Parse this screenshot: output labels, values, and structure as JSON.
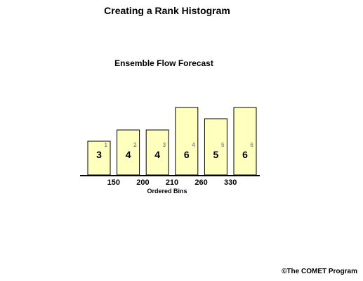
{
  "title": "Creating a Rank Histogram",
  "chart_data": {
    "type": "bar",
    "title": "Ensemble Flow Forecast",
    "xlabel": "Ordered Bins",
    "ylabel": "",
    "ranks": [
      "1",
      "2",
      "3",
      "4",
      "5",
      "6"
    ],
    "values": [
      3,
      4,
      4,
      6,
      5,
      6
    ],
    "bin_labels": [
      "150",
      "200",
      "210",
      "260",
      "330"
    ],
    "ylim": [
      0,
      6
    ],
    "grid": false,
    "legend": "none",
    "bar_color": "#ffffbe",
    "rank_label_color": "#8c8c8c"
  },
  "copyright": "©The COMET Program"
}
